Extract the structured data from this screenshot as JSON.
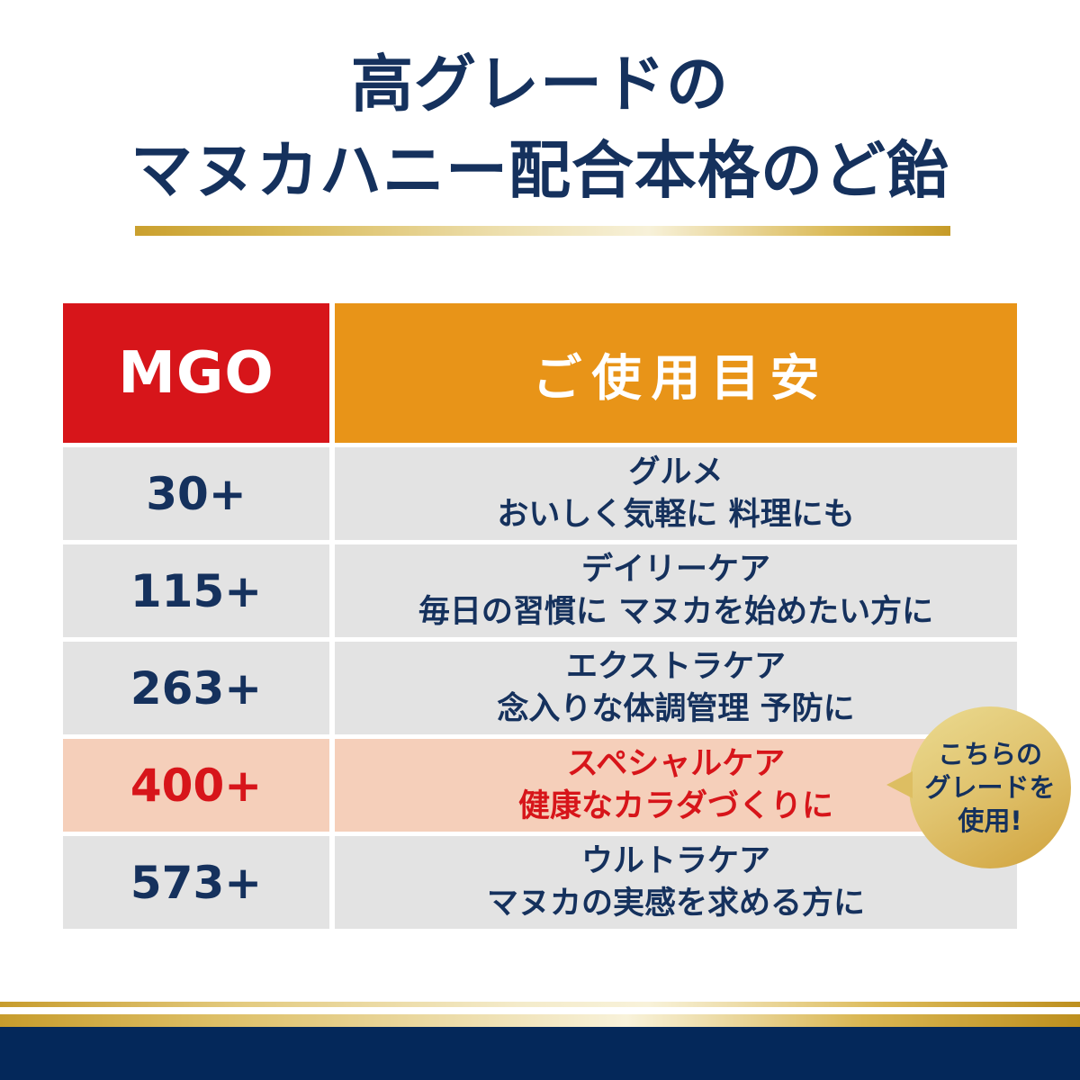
{
  "title": {
    "line1": "高グレードの",
    "line2": "マヌカハニー配合本格のど飴"
  },
  "table": {
    "header": {
      "mgo": "MGO",
      "usage": "ご使用目安"
    },
    "rows": [
      {
        "mgo": "30+",
        "care": "グルメ",
        "desc": "おいしく気軽に 料理にも"
      },
      {
        "mgo": "115+",
        "care": "デイリーケア",
        "desc": "毎日の習慣に マヌカを始めたい方に"
      },
      {
        "mgo": "263+",
        "care": "エクストラケア",
        "desc": "念入りな体調管理 予防に"
      },
      {
        "mgo": "400+",
        "care": "スペシャルケア",
        "desc": "健康なカラダづくりに"
      },
      {
        "mgo": "573+",
        "care": "ウルトラケア",
        "desc": "マヌカの実感を求める方に"
      }
    ]
  },
  "badge": {
    "line1": "こちらの",
    "line2": "グレードを",
    "line3": "使用!"
  },
  "colors": {
    "navy_text": "#15315d",
    "red_accent": "#d7151a",
    "orange_header": "#e89418",
    "row_gray": "#e3e3e3",
    "highlight_pink": "#f5cfba",
    "badge_gold": "#d0a23c",
    "footer_navy": "#04285a"
  },
  "chart_data": {
    "type": "table",
    "title": "高グレードの マヌカハニー配合本格のど飴",
    "columns": [
      "MGO",
      "ご使用目安"
    ],
    "rows": [
      [
        "30+",
        "グルメ おいしく気軽に 料理にも"
      ],
      [
        "115+",
        "デイリーケア 毎日の習慣に マヌカを始めたい方に"
      ],
      [
        "263+",
        "エクストラケア 念入りな体調管理 予防に"
      ],
      [
        "400+",
        "スペシャルケア 健康なカラダづくりに"
      ],
      [
        "573+",
        "ウルトラケア マヌカの実感を求める方に"
      ]
    ],
    "highlighted_row_index": 3,
    "annotation": "こちらのグレードを使用!"
  }
}
